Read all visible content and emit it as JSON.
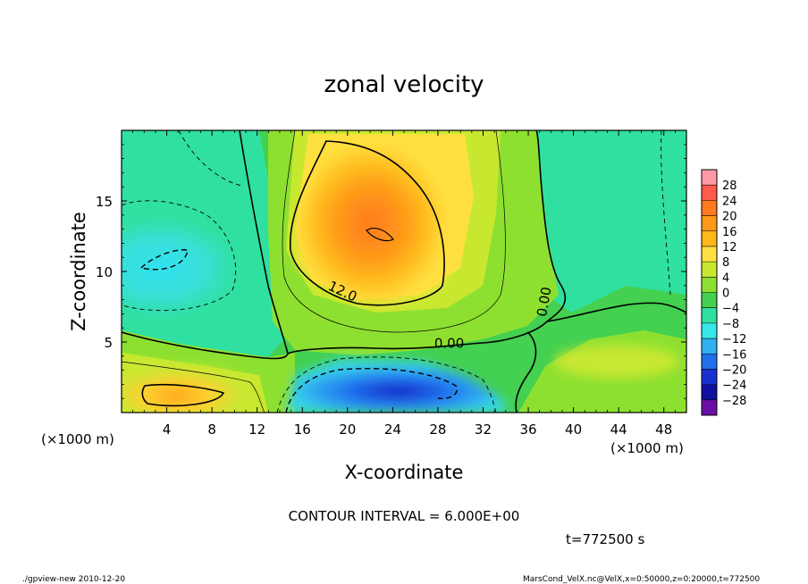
{
  "chart_data": {
    "type": "heatmap",
    "title": "zonal velocity",
    "xlabel": "X-coordinate",
    "ylabel": "Z-coordinate",
    "x_unit_label": "(×1000 m)",
    "y_unit_label": "(×1000 m)",
    "xlim": [
      0,
      50
    ],
    "ylim": [
      0,
      20
    ],
    "x_ticks": [
      4,
      8,
      12,
      16,
      20,
      24,
      28,
      32,
      36,
      40,
      44,
      48
    ],
    "y_ticks": [
      5,
      10,
      15
    ],
    "x_tick_labels": [
      "4",
      "8",
      "12",
      "16",
      "20",
      "24",
      "28",
      "32",
      "36",
      "40",
      "44",
      "48"
    ],
    "y_tick_labels": [
      "5",
      "10",
      "15"
    ],
    "colorbar": {
      "levels": [
        -28,
        -24,
        -20,
        -16,
        -12,
        -8,
        -4,
        0,
        4,
        8,
        12,
        16,
        20,
        24,
        28
      ],
      "labels": [
        "28",
        "24",
        "20",
        "16",
        "12",
        "8",
        "4",
        "0",
        "−4",
        "−8",
        "−12",
        "−16",
        "−20",
        "−24",
        "−28"
      ],
      "colors": [
        "#ff9aa8",
        "#ff5a4a",
        "#ff7a20",
        "#ff9a18",
        "#ffb818",
        "#ffe040",
        "#c8e830",
        "#8ee030",
        "#44d050",
        "#30e0a0",
        "#38e8e8",
        "#30b0f0",
        "#2070ee",
        "#1830d0",
        "#1010a0",
        "#6a10a8"
      ]
    },
    "contour_labels": [
      {
        "text": "12.0",
        "x": 19.4,
        "z": 8.3
      },
      {
        "text": "0.00",
        "x": 29.0,
        "z": 4.6
      },
      {
        "text": "0.00",
        "x": 37.8,
        "z": 7.8
      }
    ],
    "features": [
      {
        "name": "positive jet core",
        "x": 22.0,
        "z": 12.0,
        "value": 20
      },
      {
        "name": "negative low-level core",
        "x": 21.0,
        "z": 1.2,
        "value": -22
      },
      {
        "name": "negative upper-left cell",
        "x": 4.5,
        "z": 10.5,
        "value": -11
      },
      {
        "name": "positive low-level cell",
        "x": 5.0,
        "z": 1.5,
        "value": 14
      }
    ],
    "contour_interval_text": "CONTOUR INTERVAL = 6.000E+00",
    "time_text": "t=772500 s"
  },
  "footer": {
    "left": "./gpview-new   2010-12-20",
    "right": "MarsCond_VelX.nc@VelX,x=0:50000,z=0:20000,t=772500"
  },
  "colors": {
    "background": "#ffffff",
    "frame": "#000000"
  }
}
